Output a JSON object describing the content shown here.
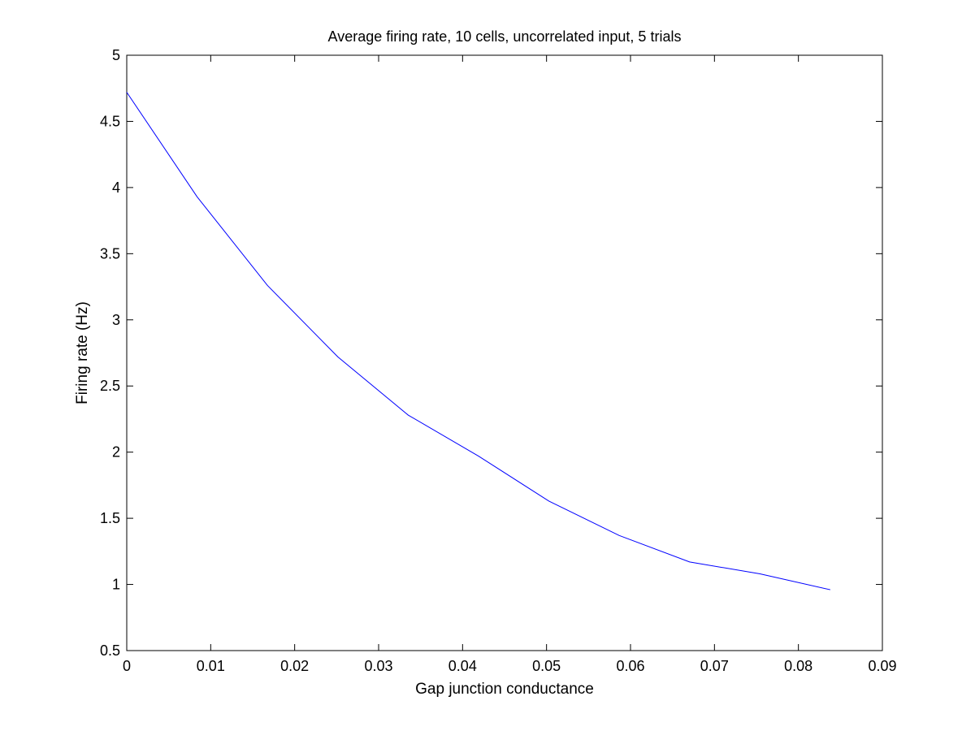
{
  "chart_data": {
    "type": "line",
    "title": "Average firing rate, 10 cells, uncorrelated input, 5 trials",
    "xlabel": "Gap junction conductance",
    "ylabel": "Firing rate (Hz)",
    "xlim": [
      0,
      0.09
    ],
    "ylim": [
      0.5,
      5
    ],
    "xticks": [
      0,
      0.01,
      0.02,
      0.03,
      0.04,
      0.05,
      0.06,
      0.07,
      0.08,
      0.09
    ],
    "xtick_labels": [
      "0",
      "0.01",
      "0.02",
      "0.03",
      "0.04",
      "0.05",
      "0.06",
      "0.07",
      "0.08",
      "0.09"
    ],
    "yticks": [
      0.5,
      1,
      1.5,
      2,
      2.5,
      3,
      3.5,
      4,
      4.5,
      5
    ],
    "ytick_labels": [
      "0.5",
      "1",
      "1.5",
      "2",
      "2.5",
      "3",
      "3.5",
      "4",
      "4.5",
      "5"
    ],
    "grid": false,
    "series": [
      {
        "color": "#0000ff",
        "x": [
          0,
          0.00838,
          0.01676,
          0.02514,
          0.03352,
          0.0419,
          0.05028,
          0.05866,
          0.06704,
          0.07542,
          0.0838
        ],
        "y": [
          4.72,
          3.93,
          3.26,
          2.72,
          2.28,
          1.97,
          1.63,
          1.37,
          1.17,
          1.08,
          0.96
        ]
      }
    ]
  }
}
